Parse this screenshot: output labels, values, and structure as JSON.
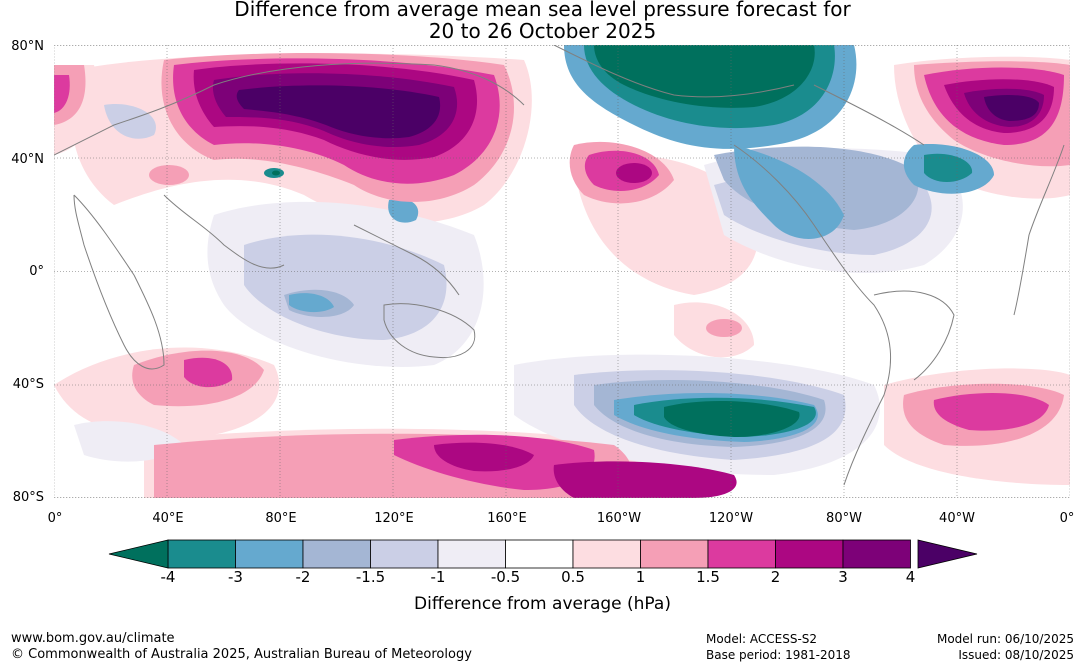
{
  "title_line1": "Difference from average mean sea level pressure forecast for",
  "title_line2": "20 to 26 October 2025",
  "lat_labels": [
    "80°N",
    "40°N",
    "0°",
    "40°S",
    "80°S"
  ],
  "lon_labels": [
    "0°",
    "40°E",
    "80°E",
    "120°E",
    "160°E",
    "160°W",
    "120°W",
    "80°W",
    "40°W",
    "0°"
  ],
  "colorbar": {
    "ticks": [
      "-4",
      "-3",
      "-2",
      "-1.5",
      "-1",
      "-0.5",
      "0.5",
      "1",
      "1.5",
      "2",
      "3",
      "4"
    ],
    "colors": [
      "#1a8c8e",
      "#65a9cf",
      "#a4b6d4",
      "#cbcfe6",
      "#efedf5",
      "#ffffff",
      "#fddde1",
      "#f59fb6",
      "#dc3a9f",
      "#ac0782",
      "#7d0178"
    ],
    "under_color": "#00705d",
    "over_color": "#4b0066",
    "label": "Difference from average (hPa)"
  },
  "footer": {
    "website": "www.bom.gov.au/climate",
    "copyright": "© Commonwealth of Australia 2025, Australian Bureau of Meteorology",
    "model": "Model: ACCESS-S2",
    "base_period": "Base period: 1981-2018",
    "model_run": "Model run: 06/10/2025",
    "issued": "Issued: 08/10/2025"
  }
}
